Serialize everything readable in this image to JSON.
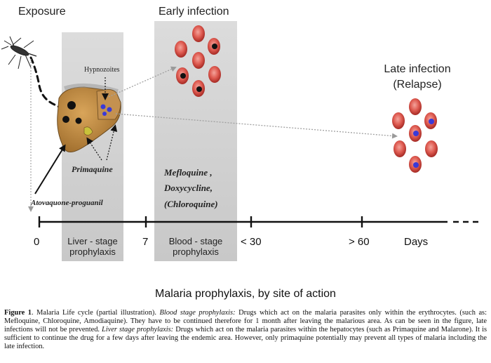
{
  "headings": {
    "exposure": "Exposure",
    "early": "Early infection",
    "late_line1": "Late infection",
    "late_line2": "(Relapse)"
  },
  "labels": {
    "hypnozoites": "Hypnozoites",
    "primaquine": "Primaquine",
    "atovaquone": "Atovaquone-proguanil",
    "mefloquine": "Mefloquine ,",
    "doxycycline": "Doxycycline,",
    "chloroquine": "(Chloroquine)"
  },
  "timeline": {
    "ticks": [
      "0",
      "7",
      "< 30",
      "> 60"
    ],
    "unit": "Days"
  },
  "zones": {
    "liver_line1": "Liver - stage",
    "liver_line2": "prophylaxis",
    "blood_line1": "Blood - stage",
    "blood_line2": "prophylaxis"
  },
  "main_caption": "Malaria prophylaxis, by site of action",
  "figure_caption": {
    "label": "Figure 1",
    "part1": ". Malaria Life cycle (partial illustration). ",
    "blood_term": "Blood stage prophylaxis:",
    "part2": " Drugs which act on the malaria parasites only within the erythrocytes. (such as: Mefloquine, Chloroquine, Amodiaquine). They have to be continued therefore for 1 month after leaving the malarious area. As can be seen in the figure, late infections will not be prevented. ",
    "liver_term": "Liver stage prophylaxis:",
    "part3": " Drugs which act on the malaria parasites within the hepatocytes (such as Primaquine and Malarone). It is sufficient to continue the drug for a few days after leaving the endemic area. However, only primaquine potentially may prevent all types of malaria including the late infection."
  },
  "colors": {
    "zone": "#d2d2d2",
    "rbc": "#d24a42",
    "parasite_early": "#111111",
    "parasite_late": "#3a3ad8",
    "liver": "#b8843c",
    "arrow": "#a0a0a0"
  }
}
